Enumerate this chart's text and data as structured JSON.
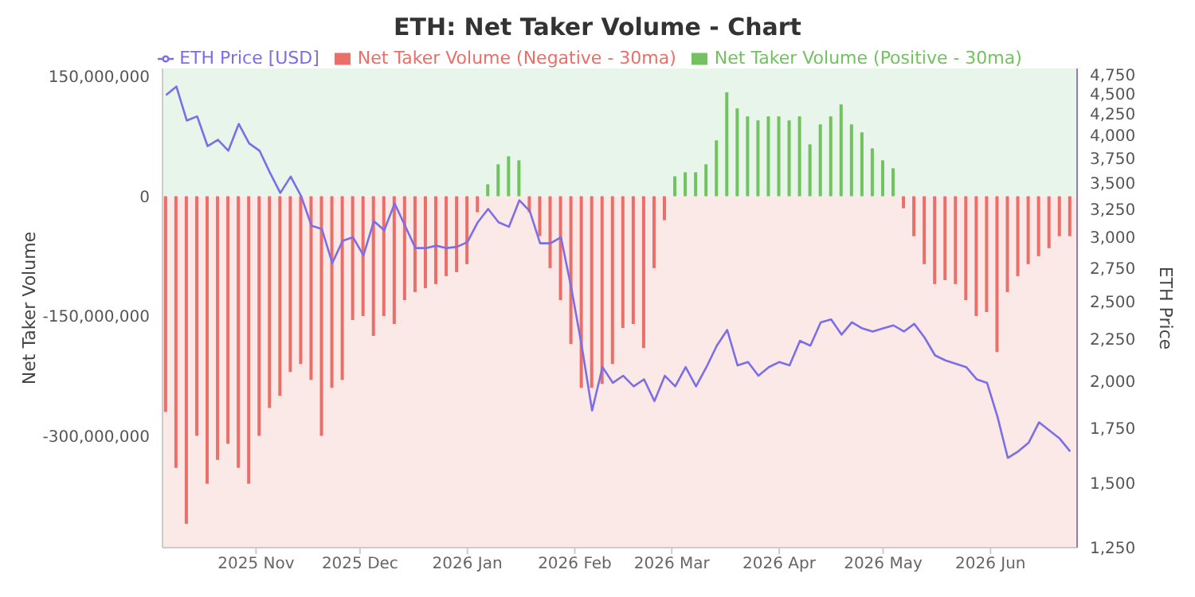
{
  "chart_data": {
    "type": "bar",
    "title": "ETH: Net Taker Volume - Chart",
    "ylabel": "Net Taker Volume",
    "y2label": "ETH Price",
    "x": [
      "2025-10-06",
      "2025-10-09",
      "2025-10-12",
      "2025-10-15",
      "2025-10-18",
      "2025-10-21",
      "2025-10-24",
      "2025-10-27",
      "2025-10-30",
      "2025-11-02",
      "2025-11-05",
      "2025-11-08",
      "2025-11-11",
      "2025-11-14",
      "2025-11-17",
      "2025-11-20",
      "2025-11-23",
      "2025-11-26",
      "2025-11-29",
      "2025-12-02",
      "2025-12-05",
      "2025-12-08",
      "2025-12-11",
      "2025-12-14",
      "2025-12-17",
      "2025-12-20",
      "2025-12-23",
      "2025-12-26",
      "2025-12-29",
      "2026-01-01",
      "2026-01-04",
      "2026-01-07",
      "2026-01-10",
      "2026-01-13",
      "2026-01-16",
      "2026-01-19",
      "2026-01-22",
      "2026-01-25",
      "2026-01-28",
      "2026-01-31",
      "2026-02-03",
      "2026-02-06",
      "2026-02-09",
      "2026-02-12",
      "2026-02-15",
      "2026-02-18",
      "2026-02-21",
      "2026-02-24",
      "2026-02-27",
      "2026-03-02",
      "2026-03-05",
      "2026-03-08",
      "2026-03-11",
      "2026-03-14",
      "2026-03-17",
      "2026-03-20",
      "2026-03-23",
      "2026-03-26",
      "2026-03-29",
      "2026-04-01",
      "2026-04-04",
      "2026-04-07",
      "2026-04-10",
      "2026-04-13",
      "2026-04-16",
      "2026-04-19",
      "2026-04-22",
      "2026-04-25",
      "2026-04-28",
      "2026-05-01",
      "2026-05-04",
      "2026-05-07",
      "2026-05-10",
      "2026-05-13",
      "2026-05-16",
      "2026-05-19",
      "2026-05-22",
      "2026-05-25",
      "2026-05-28",
      "2026-05-31",
      "2026-06-03",
      "2026-06-06",
      "2026-06-09",
      "2026-06-12",
      "2026-06-15",
      "2026-06-18",
      "2026-06-21",
      "2026-06-24"
    ],
    "series": [
      {
        "name": "ETH Price [USD]",
        "type": "line",
        "axis": "y2",
        "color": "#7b6ee6",
        "values": [
          4480,
          4590,
          4170,
          4220,
          3880,
          3950,
          3830,
          4130,
          3910,
          3830,
          3600,
          3400,
          3560,
          3370,
          3100,
          3070,
          2790,
          2970,
          3000,
          2850,
          3140,
          3060,
          3300,
          3100,
          2910,
          2910,
          2930,
          2910,
          2920,
          2960,
          3130,
          3250,
          3130,
          3090,
          3330,
          3230,
          2950,
          2950,
          3000,
          2600,
          2210,
          1840,
          2080,
          1990,
          2030,
          1970,
          2010,
          1890,
          2030,
          1970,
          2080,
          1970,
          2080,
          2210,
          2310,
          2090,
          2110,
          2030,
          2080,
          2110,
          2090,
          2240,
          2210,
          2360,
          2380,
          2280,
          2360,
          2320,
          2300,
          2320,
          2340,
          2300,
          2350,
          2260,
          2150,
          2120,
          2100,
          2080,
          2010,
          1990,
          1810,
          1610,
          1640,
          1680,
          1780,
          1740,
          1700,
          1640
        ]
      },
      {
        "name": "Net Taker Volume (Negative - 30ma)",
        "color": "#ea6f69",
        "values": [
          -270000000,
          -340000000,
          -410000000,
          -300000000,
          -360000000,
          -330000000,
          -310000000,
          -340000000,
          -360000000,
          -300000000,
          -265000000,
          -250000000,
          -220000000,
          -210000000,
          -230000000,
          -300000000,
          -240000000,
          -230000000,
          -155000000,
          -150000000,
          -175000000,
          -150000000,
          -160000000,
          -130000000,
          -120000000,
          -115000000,
          -110000000,
          -100000000,
          -95000000,
          -85000000,
          -20000000,
          null,
          null,
          null,
          null,
          -20000000,
          -50000000,
          -90000000,
          -130000000,
          -185000000,
          -240000000,
          -240000000,
          -235000000,
          -210000000,
          -165000000,
          -160000000,
          -190000000,
          -90000000,
          -30000000,
          null,
          null,
          null,
          null,
          null,
          null,
          null,
          null,
          null,
          null,
          null,
          null,
          null,
          null,
          null,
          null,
          null,
          null,
          null,
          null,
          null,
          null,
          -15000000,
          -50000000,
          -85000000,
          -110000000,
          -105000000,
          -110000000,
          -130000000,
          -150000000,
          -145000000,
          -195000000,
          -120000000,
          -100000000,
          -85000000,
          -75000000,
          -65000000,
          -50000000,
          -50000000
        ]
      },
      {
        "name": "Net Taker Volume (Positive - 30ma)",
        "color": "#72c25f",
        "values": [
          null,
          null,
          null,
          null,
          null,
          null,
          null,
          null,
          null,
          null,
          null,
          null,
          null,
          null,
          null,
          null,
          null,
          null,
          null,
          null,
          null,
          null,
          null,
          null,
          null,
          null,
          null,
          null,
          null,
          null,
          null,
          15000000,
          40000000,
          50000000,
          45000000,
          null,
          null,
          null,
          null,
          null,
          null,
          null,
          null,
          null,
          null,
          null,
          null,
          null,
          null,
          25000000,
          30000000,
          30000000,
          40000000,
          70000000,
          130000000,
          110000000,
          100000000,
          95000000,
          100000000,
          100000000,
          95000000,
          100000000,
          65000000,
          90000000,
          100000000,
          115000000,
          90000000,
          80000000,
          60000000,
          45000000,
          35000000,
          null,
          null,
          null,
          null,
          null,
          null,
          null,
          null,
          null,
          null,
          null,
          null,
          null,
          null,
          null,
          null,
          null
        ]
      }
    ],
    "stacked": true,
    "xlim": [
      "2025-10-05",
      "2026-06-26"
    ],
    "xticks": [
      {
        "value": "2025-11-01",
        "label": "2025 Nov"
      },
      {
        "value": "2025-12-01",
        "label": "2025 Dec"
      },
      {
        "value": "2026-01-01",
        "label": "2026 Jan"
      },
      {
        "value": "2026-02-01",
        "label": "2026 Feb"
      },
      {
        "value": "2026-03-01",
        "label": "2026 Mar"
      },
      {
        "value": "2026-04-01",
        "label": "2026 Apr"
      },
      {
        "value": "2026-05-01",
        "label": "2026 May"
      },
      {
        "value": "2026-06-01",
        "label": "2026 Jun"
      }
    ],
    "ylim": [
      -440000000,
      160000000
    ],
    "yticks": [
      {
        "value": -300000000,
        "label": "-300,000,000"
      },
      {
        "value": -150000000,
        "label": "-150,000,000"
      },
      {
        "value": 0,
        "label": "0"
      },
      {
        "value": 150000000,
        "label": "150,000,000"
      }
    ],
    "y2lim": [
      1250,
      4830
    ],
    "y2ticks": [
      {
        "value": 1250,
        "label": "1,250"
      },
      {
        "value": 1500,
        "label": "1,500"
      },
      {
        "value": 1750,
        "label": "1,750"
      },
      {
        "value": 2000,
        "label": "2,000"
      },
      {
        "value": 2250,
        "label": "2,250"
      },
      {
        "value": 2500,
        "label": "2,500"
      },
      {
        "value": 2750,
        "label": "2,750"
      },
      {
        "value": 3000,
        "label": "3,000"
      },
      {
        "value": 3250,
        "label": "3,250"
      },
      {
        "value": 3500,
        "label": "3,500"
      },
      {
        "value": 3750,
        "label": "3,750"
      },
      {
        "value": 4000,
        "label": "4,000"
      },
      {
        "value": 4250,
        "label": "4,250"
      },
      {
        "value": 4500,
        "label": "4,500"
      },
      {
        "value": 4750,
        "label": "4,750"
      }
    ],
    "log": "y2",
    "bands": [
      {
        "axis": "y",
        "from": 0,
        "to": 160000000,
        "color": "#e8f5ea"
      },
      {
        "axis": "y",
        "from": -440000000,
        "to": 0,
        "color": "#fbe9e7"
      }
    ],
    "legend": "top",
    "marker": "none",
    "line_style": "solid"
  }
}
